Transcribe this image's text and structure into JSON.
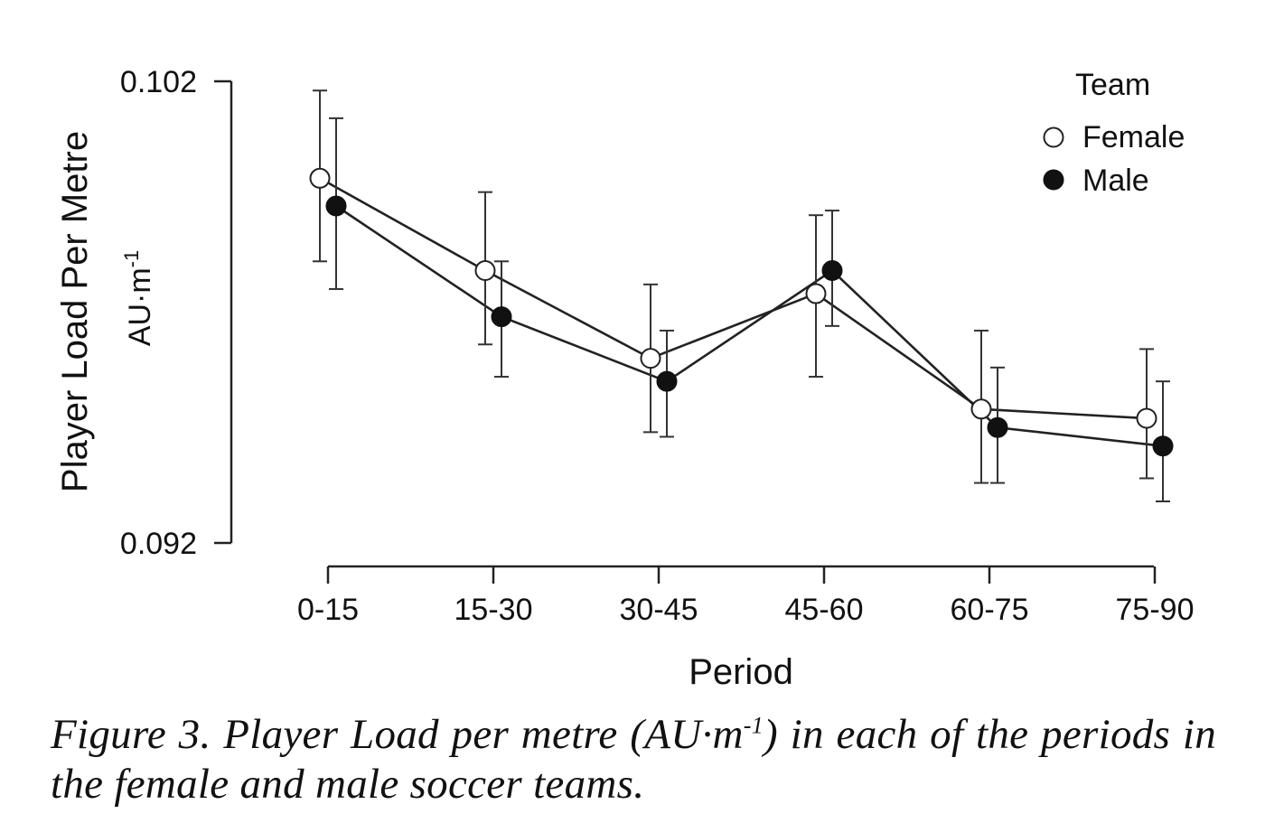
{
  "chart_data": {
    "type": "line",
    "categories": [
      "0-15",
      "15-30",
      "30-45",
      "45-60",
      "60-75",
      "75-90"
    ],
    "xlabel": "Period",
    "ylabel": "Player Load Per Metre",
    "yunit": "AU·m",
    "yunit_sup": "-1",
    "ylim": [
      0.092,
      0.102
    ],
    "yticks": [
      "0.102",
      "0.092"
    ],
    "grid": false,
    "legend": {
      "title": "Team",
      "placement": "top-right"
    },
    "error_bars": true,
    "series": [
      {
        "name": "Female",
        "marker": "open-circle",
        "values": [
          0.0999,
          0.0979,
          0.096,
          0.0974,
          0.0949,
          0.0947
        ],
        "lower": [
          0.0981,
          0.0963,
          0.0944,
          0.0956,
          0.0933,
          0.0934
        ],
        "upper": [
          0.1018,
          0.0996,
          0.0976,
          0.0991,
          0.0966,
          0.0962
        ]
      },
      {
        "name": "Male",
        "marker": "filled-circle",
        "values": [
          0.0993,
          0.0969,
          0.0955,
          0.0979,
          0.0945,
          0.0941
        ],
        "lower": [
          0.0975,
          0.0956,
          0.0943,
          0.0967,
          0.0933,
          0.0929
        ],
        "upper": [
          0.1012,
          0.0981,
          0.0966,
          0.0992,
          0.0958,
          0.0955
        ]
      }
    ]
  },
  "caption": {
    "text_before": "Figure 3. Player Load per metre (AU·m",
    "sup": "-1",
    "text_after": ") in each of the periods in the female and male soccer teams."
  }
}
